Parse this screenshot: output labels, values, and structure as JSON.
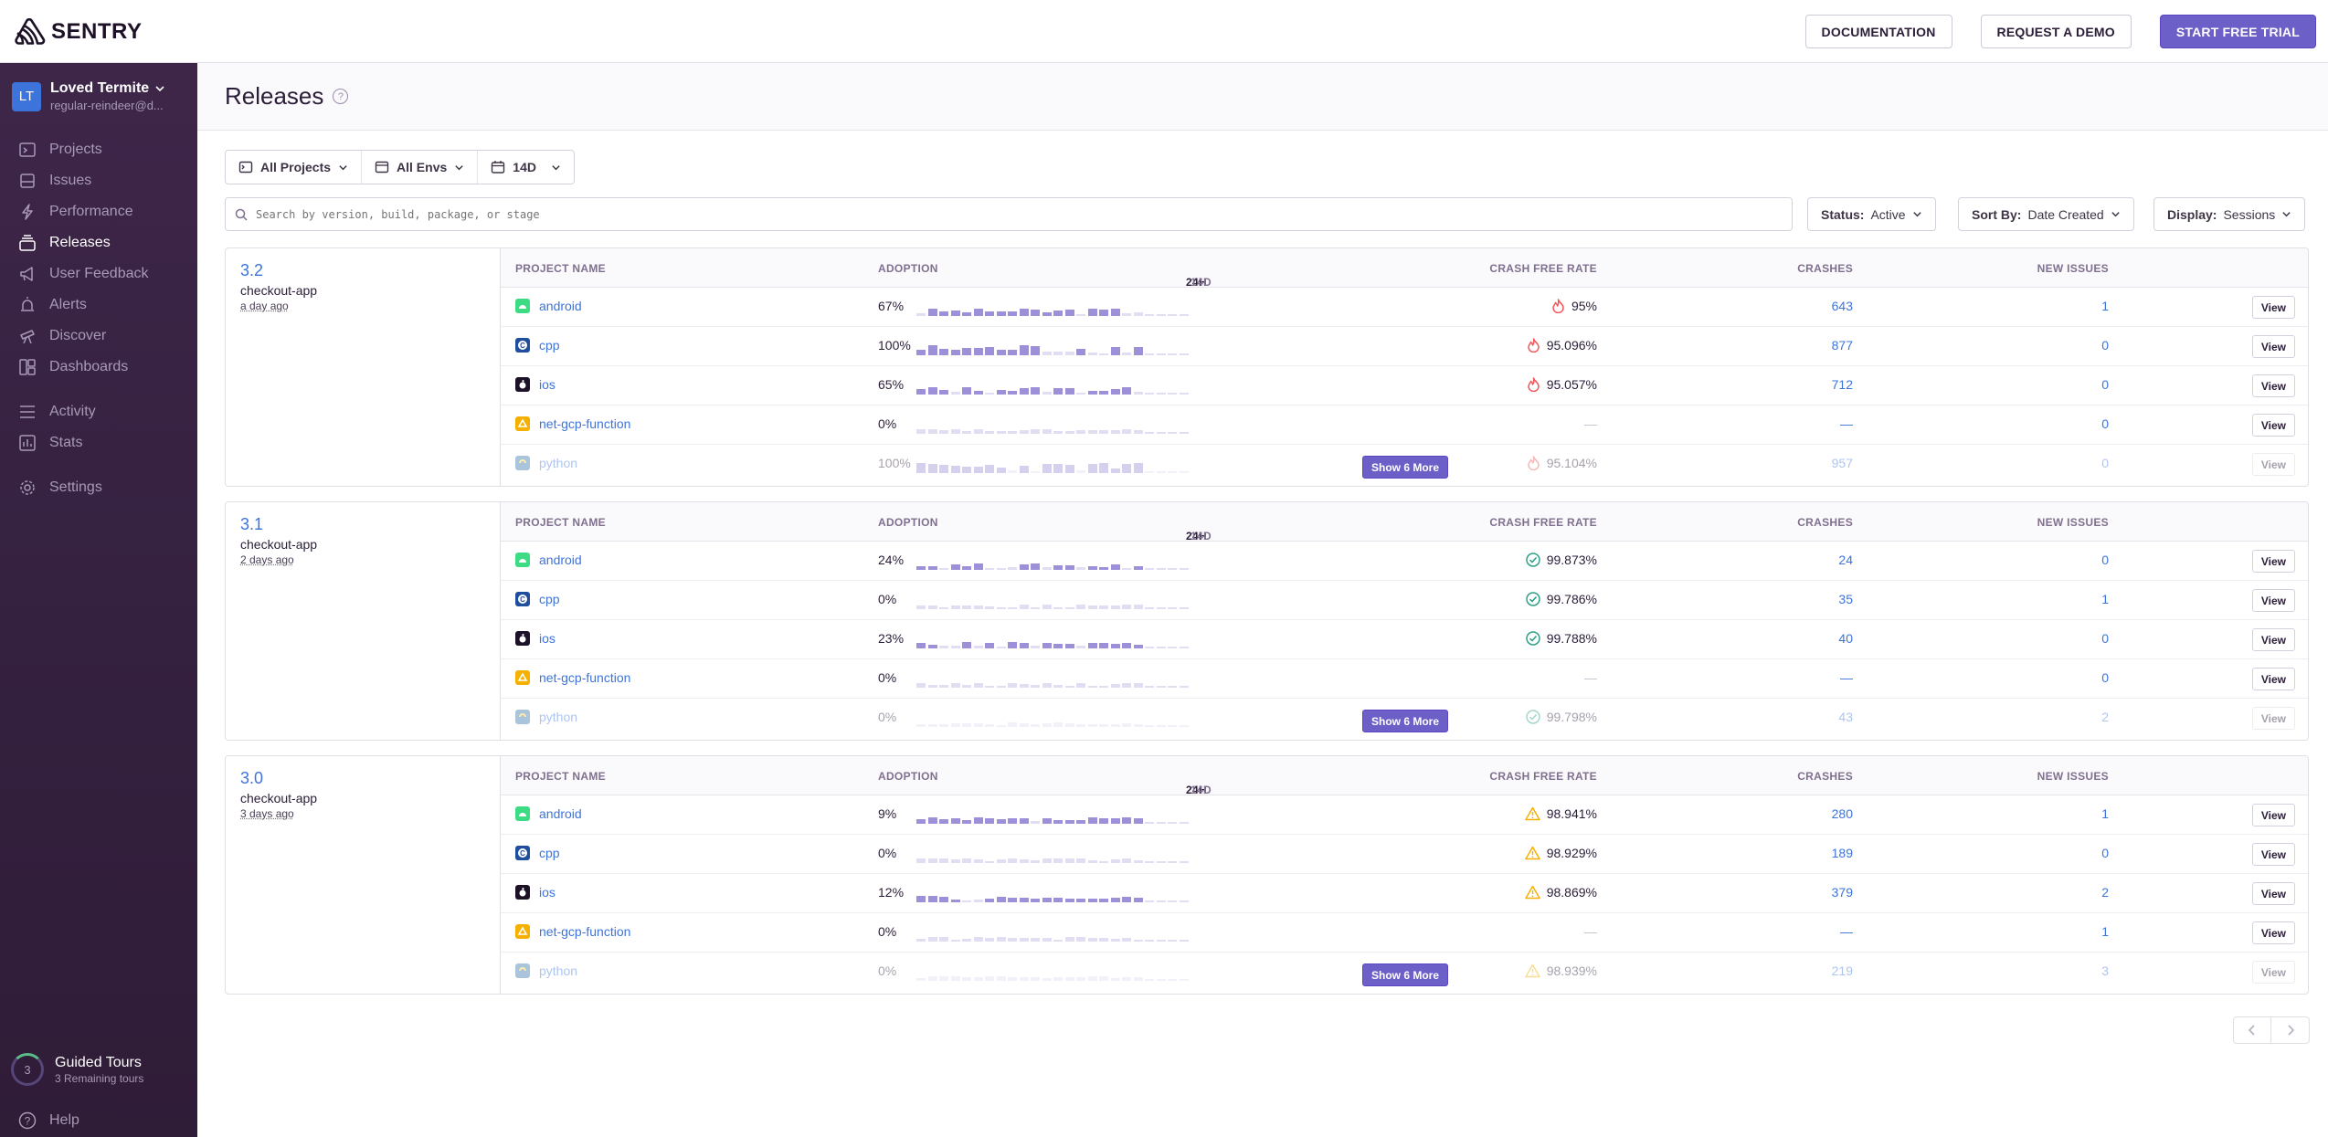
{
  "brand": {
    "name": "SENTRY"
  },
  "top_actions": {
    "documentation": "DOCUMENTATION",
    "request_demo": "REQUEST A DEMO",
    "start_trial": "START FREE TRIAL"
  },
  "org": {
    "initials": "LT",
    "name": "Loved Termite",
    "user": "regular-reindeer@d..."
  },
  "nav": [
    {
      "label": "Projects",
      "icon": "projects-icon"
    },
    {
      "label": "Issues",
      "icon": "issues-icon"
    },
    {
      "label": "Performance",
      "icon": "lightning-icon"
    },
    {
      "label": "Releases",
      "icon": "releases-icon",
      "active": true
    },
    {
      "label": "User Feedback",
      "icon": "megaphone-icon"
    },
    {
      "label": "Alerts",
      "icon": "siren-icon"
    },
    {
      "label": "Discover",
      "icon": "telescope-icon"
    },
    {
      "label": "Dashboards",
      "icon": "dashboard-icon"
    }
  ],
  "nav2": [
    {
      "label": "Activity",
      "icon": "list-icon"
    },
    {
      "label": "Stats",
      "icon": "chart-icon"
    }
  ],
  "nav3": [
    {
      "label": "Settings",
      "icon": "gear-icon"
    }
  ],
  "guided": {
    "count": "3",
    "title": "Guided Tours",
    "sub": "3 Remaining tours"
  },
  "help": "Help",
  "page": {
    "title": "Releases"
  },
  "filters": {
    "projects": "All Projects",
    "envs": "All Envs",
    "period": "14D"
  },
  "search": {
    "placeholder": "Search by version, build, package, or stage"
  },
  "status": {
    "label": "Status:",
    "value": "Active"
  },
  "sort": {
    "label": "Sort By:",
    "value": "Date Created"
  },
  "display": {
    "label": "Display:",
    "value": "Sessions"
  },
  "table_headers": {
    "project": "PROJECT NAME",
    "adoption": "ADOPTION",
    "p24": "24H",
    "p14": "14D",
    "cfr": "CRASH FREE RATE",
    "crashes": "CRASHES",
    "new_issues": "NEW ISSUES"
  },
  "view_label": "View",
  "show_more": "Show 6 More",
  "colors": {
    "accent": "#6c5fc7",
    "link": "#3d74db",
    "good": "#2ba185",
    "warn": "#f5b000",
    "bad": "#f55459"
  },
  "releases": [
    {
      "version": "3.2",
      "project": "checkout-app",
      "date": "a day ago",
      "rows": [
        {
          "name": "android",
          "icon": "android",
          "adoption": "67%",
          "status": "bad",
          "cfr": "95%",
          "crashes": "643",
          "new": "1"
        },
        {
          "name": "cpp",
          "icon": "cpp",
          "adoption": "100%",
          "status": "bad",
          "cfr": "95.096%",
          "crashes": "877",
          "new": "0"
        },
        {
          "name": "ios",
          "icon": "ios",
          "adoption": "65%",
          "status": "bad",
          "cfr": "95.057%",
          "crashes": "712",
          "new": "0"
        },
        {
          "name": "net-gcp-function",
          "icon": "gcp",
          "adoption": "0%",
          "status": "none",
          "cfr": "—",
          "crashes": "—",
          "new": "0"
        },
        {
          "name": "python",
          "icon": "python",
          "adoption": "100%",
          "status": "bad",
          "cfr": "95.104%",
          "crashes": "957",
          "new": "0"
        }
      ]
    },
    {
      "version": "3.1",
      "project": "checkout-app",
      "date": "2 days ago",
      "rows": [
        {
          "name": "android",
          "icon": "android",
          "adoption": "24%",
          "status": "good",
          "cfr": "99.873%",
          "crashes": "24",
          "new": "0"
        },
        {
          "name": "cpp",
          "icon": "cpp",
          "adoption": "0%",
          "status": "good",
          "cfr": "99.786%",
          "crashes": "35",
          "new": "1"
        },
        {
          "name": "ios",
          "icon": "ios",
          "adoption": "23%",
          "status": "good",
          "cfr": "99.788%",
          "crashes": "40",
          "new": "0"
        },
        {
          "name": "net-gcp-function",
          "icon": "gcp",
          "adoption": "0%",
          "status": "none",
          "cfr": "—",
          "crashes": "—",
          "new": "0"
        },
        {
          "name": "python",
          "icon": "python",
          "adoption": "0%",
          "status": "good",
          "cfr": "99.798%",
          "crashes": "43",
          "new": "2"
        }
      ]
    },
    {
      "version": "3.0",
      "project": "checkout-app",
      "date": "3 days ago",
      "rows": [
        {
          "name": "android",
          "icon": "android",
          "adoption": "9%",
          "status": "warn",
          "cfr": "98.941%",
          "crashes": "280",
          "new": "1"
        },
        {
          "name": "cpp",
          "icon": "cpp",
          "adoption": "0%",
          "status": "warn",
          "cfr": "98.929%",
          "crashes": "189",
          "new": "0"
        },
        {
          "name": "ios",
          "icon": "ios",
          "adoption": "12%",
          "status": "warn",
          "cfr": "98.869%",
          "crashes": "379",
          "new": "2"
        },
        {
          "name": "net-gcp-function",
          "icon": "gcp",
          "adoption": "0%",
          "status": "none",
          "cfr": "—",
          "crashes": "—",
          "new": "1"
        },
        {
          "name": "python",
          "icon": "python",
          "adoption": "0%",
          "status": "warn",
          "cfr": "98.939%",
          "crashes": "219",
          "new": "3"
        }
      ]
    }
  ]
}
